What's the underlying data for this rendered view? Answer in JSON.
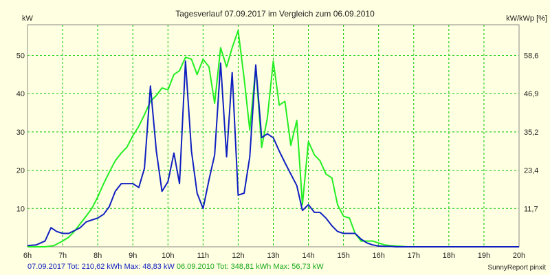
{
  "chart_data": {
    "type": "line",
    "title": "Tagesverlauf 07.09.2017 im Vergleich zum 06.09.2010",
    "ylabel_left": "kW",
    "ylabel_right": "kW/kWp [%]",
    "x_ticks": [
      "6h",
      "7h",
      "8h",
      "9h",
      "10h",
      "11h",
      "12h",
      "13h",
      "14h",
      "15h",
      "16h",
      "17h",
      "18h",
      "19h",
      "20h"
    ],
    "xlim": [
      6,
      20
    ],
    "ylim": [
      0,
      58
    ],
    "y_ticks_left": [
      "10",
      "20",
      "30",
      "40",
      "50"
    ],
    "y_ticks_left_values": [
      10,
      20,
      30,
      40,
      50
    ],
    "y_ticks_right": [
      "11,7",
      "23,4",
      "35,2",
      "46,9",
      "58,6"
    ],
    "grid": true,
    "colors": {
      "background": "#ffffe1",
      "grid": "#00c800",
      "series1": "#1020c0",
      "series2": "#22ee22"
    },
    "series": [
      {
        "name": "07.09.2017",
        "x": [
          6.0,
          6.25,
          6.5,
          6.67,
          6.83,
          7.0,
          7.17,
          7.33,
          7.5,
          7.67,
          7.83,
          8.0,
          8.17,
          8.33,
          8.5,
          8.67,
          8.83,
          9.0,
          9.17,
          9.33,
          9.5,
          9.67,
          9.83,
          10.0,
          10.17,
          10.33,
          10.5,
          10.67,
          10.83,
          11.0,
          11.17,
          11.33,
          11.5,
          11.67,
          11.83,
          12.0,
          12.17,
          12.33,
          12.5,
          12.67,
          12.83,
          13.0,
          13.17,
          13.33,
          13.5,
          13.67,
          13.83,
          14.0,
          14.17,
          14.33,
          14.5,
          14.67,
          14.83,
          15.0,
          15.17,
          15.33,
          15.5,
          15.67,
          15.83,
          16.0,
          16.17,
          16.33,
          16.5,
          16.67,
          16.83,
          17.0,
          17.17,
          17.33,
          17.5,
          17.67,
          17.83,
          18.0,
          18.25,
          18.5,
          18.75,
          19.0,
          19.5,
          20.0
        ],
        "values": [
          0.3,
          0.5,
          1.5,
          5.0,
          4.0,
          3.5,
          3.5,
          4.2,
          5.0,
          6.5,
          7.0,
          7.5,
          8.5,
          10.5,
          14.5,
          16.5,
          16.5,
          16.5,
          15.5,
          20.5,
          42.0,
          25.0,
          14.5,
          17.0,
          24.5,
          16.5,
          48.5,
          25.0,
          14.0,
          10.0,
          17.5,
          24.0,
          48.0,
          23.5,
          45.5,
          13.5,
          14.0,
          23.5,
          47.5,
          28.5,
          29.5,
          28.5,
          25.0,
          22.0,
          19.0,
          16.0,
          9.5,
          11.0,
          9.0,
          9.0,
          7.5,
          5.5,
          4.0,
          3.5,
          3.5,
          3.5,
          2.0,
          1.0,
          0.5,
          0.2,
          0.1,
          0.1,
          0.0,
          0.0,
          0.0,
          0.0,
          0.0,
          0.0,
          0.0,
          0.0,
          0.0,
          0.0,
          0.0,
          0.0,
          0.0,
          0.0,
          0.0,
          0.0
        ]
      },
      {
        "name": "06.09.2010",
        "x": [
          6.0,
          6.25,
          6.5,
          6.75,
          7.0,
          7.17,
          7.33,
          7.5,
          7.67,
          7.83,
          8.0,
          8.17,
          8.33,
          8.5,
          8.67,
          8.83,
          9.0,
          9.17,
          9.33,
          9.5,
          9.67,
          9.83,
          10.0,
          10.17,
          10.33,
          10.5,
          10.67,
          10.83,
          11.0,
          11.17,
          11.33,
          11.5,
          11.67,
          11.83,
          12.0,
          12.17,
          12.33,
          12.5,
          12.67,
          12.83,
          13.0,
          13.17,
          13.33,
          13.5,
          13.67,
          13.83,
          14.0,
          14.17,
          14.33,
          14.5,
          14.67,
          14.83,
          15.0,
          15.17,
          15.33,
          15.5,
          15.67,
          15.83,
          16.0,
          16.17,
          16.33,
          16.5,
          16.67,
          16.83,
          17.0,
          17.17,
          17.33,
          17.5,
          17.67,
          17.83,
          18.0,
          18.25,
          18.5,
          18.75,
          19.0,
          19.25,
          19.5,
          19.75,
          20.0
        ],
        "values": [
          0.0,
          0.0,
          0.0,
          0.3,
          1.5,
          2.5,
          4.0,
          6.0,
          8.0,
          10.0,
          13.0,
          16.5,
          19.5,
          22.5,
          24.5,
          26.0,
          29.0,
          31.5,
          34.5,
          38.0,
          39.5,
          41.5,
          41.0,
          45.0,
          46.0,
          49.5,
          49.0,
          45.0,
          49.0,
          47.0,
          37.5,
          52.0,
          47.0,
          52.0,
          56.5,
          44.0,
          30.5,
          47.0,
          26.0,
          33.5,
          48.5,
          37.0,
          38.0,
          26.5,
          33.0,
          11.0,
          27.5,
          24.0,
          22.5,
          19.0,
          18.0,
          11.0,
          8.0,
          7.5,
          3.5,
          1.5,
          1.5,
          1.5,
          1.0,
          0.5,
          0.3,
          0.2,
          0.1,
          0.0,
          0.0,
          0.0,
          0.0,
          0.0,
          0.0,
          0.0,
          0.0,
          0.0,
          0.0,
          0.0,
          0.0,
          0.0,
          0.0,
          0.0,
          0.0
        ]
      }
    ]
  },
  "footer": {
    "series1_text": "07.09.2017 Tot: 210,62 kWh Max: 48,83 kW",
    "series2_text": "06.09.2010 Tot: 348,81 kWh Max: 56,73 kW",
    "credit": "SunnyReport pinxit"
  }
}
